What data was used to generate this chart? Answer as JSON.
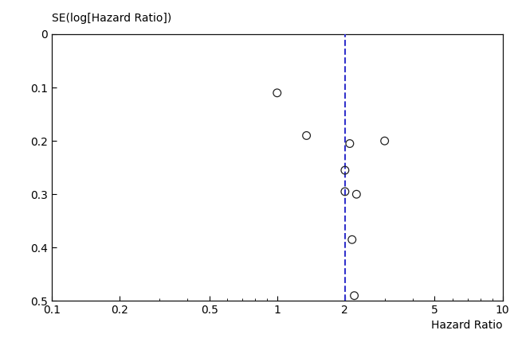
{
  "title": "",
  "xlabel": "Hazard Ratio",
  "ylabel": "SE(log[Hazard Ratio])",
  "x_data": [
    1.0,
    1.35,
    2.1,
    3.0,
    2.0,
    2.0,
    2.25,
    2.15,
    2.2
  ],
  "y_data": [
    0.11,
    0.19,
    0.205,
    0.2,
    0.255,
    0.295,
    0.3,
    0.385,
    0.49
  ],
  "xlim_log": [
    0.1,
    10
  ],
  "ylim": [
    0.0,
    0.5
  ],
  "dashed_vline_x": 2.0,
  "dashed_vline_color": "#3333CC",
  "marker_color": "none",
  "marker_edge_color": "#222222",
  "marker_size": 7,
  "xtick_values": [
    0.1,
    0.2,
    0.5,
    1,
    2,
    5,
    10
  ],
  "ytick_values": [
    0.0,
    0.1,
    0.2,
    0.3,
    0.4,
    0.5
  ],
  "background_color": "#ffffff",
  "font_size": 10,
  "label_font_size": 10
}
